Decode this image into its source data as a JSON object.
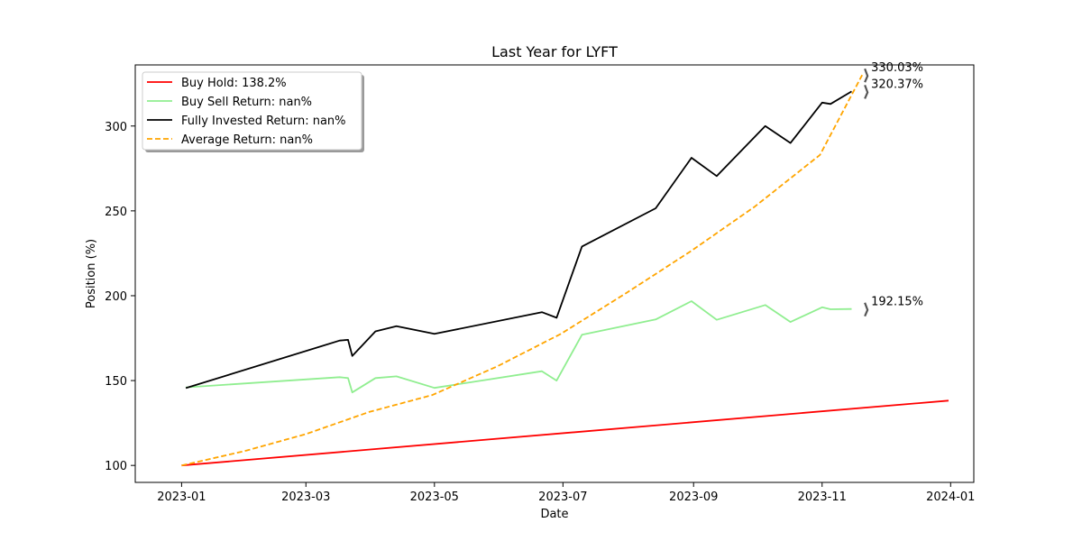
{
  "chart_data": {
    "type": "line",
    "title": "Last Year for LYFT",
    "xlabel": "Date",
    "ylabel": "Position (%)",
    "xlim": [
      "2022-12-10",
      "2024-01-12"
    ],
    "ylim": [
      90,
      336
    ],
    "x_ticks": [
      "2023-01-01",
      "2023-03-01",
      "2023-05-01",
      "2023-07-01",
      "2023-09-01",
      "2023-11-01",
      "2024-01-01"
    ],
    "x_tick_labels": [
      "2023-01",
      "2023-03",
      "2023-05",
      "2023-07",
      "2023-09",
      "2023-11",
      "2024-01"
    ],
    "y_ticks": [
      100,
      150,
      200,
      250,
      300
    ],
    "y_tick_labels": [
      "100",
      "150",
      "200",
      "250",
      "300"
    ],
    "legend_position": "top-left",
    "grid": false,
    "series": [
      {
        "name": "Buy Hold: 138.2%",
        "color": "#ff0000",
        "dash": "solid",
        "points": [
          [
            "2023-01-01",
            100
          ],
          [
            "2023-12-31",
            138.2
          ]
        ]
      },
      {
        "name": "Buy Sell Return: nan%",
        "color": "#90ee90",
        "dash": "solid",
        "points": [
          [
            "2023-01-03",
            146
          ],
          [
            "2023-03-17",
            152
          ],
          [
            "2023-03-21",
            151.5
          ],
          [
            "2023-03-23",
            143
          ],
          [
            "2023-04-03",
            151.5
          ],
          [
            "2023-04-13",
            152.5
          ],
          [
            "2023-05-01",
            145.7
          ],
          [
            "2023-06-21",
            155.5
          ],
          [
            "2023-06-28",
            150
          ],
          [
            "2023-07-10",
            177
          ],
          [
            "2023-08-14",
            186
          ],
          [
            "2023-08-31",
            196.8
          ],
          [
            "2023-09-12",
            185.8
          ],
          [
            "2023-10-05",
            194.5
          ],
          [
            "2023-10-17",
            184.5
          ],
          [
            "2023-11-01",
            193.2
          ],
          [
            "2023-11-05",
            192
          ],
          [
            "2023-11-15",
            192.15
          ]
        ]
      },
      {
        "name": "Fully Invested Return: nan%",
        "color": "#000000",
        "dash": "solid",
        "points": [
          [
            "2023-01-03",
            145.6
          ],
          [
            "2023-03-17",
            173.6
          ],
          [
            "2023-03-21",
            174
          ],
          [
            "2023-03-23",
            164.5
          ],
          [
            "2023-04-03",
            179
          ],
          [
            "2023-04-13",
            182
          ],
          [
            "2023-05-01",
            177.5
          ],
          [
            "2023-06-21",
            190.3
          ],
          [
            "2023-06-28",
            187
          ],
          [
            "2023-07-10",
            229
          ],
          [
            "2023-08-14",
            251.5
          ],
          [
            "2023-08-31",
            281.3
          ],
          [
            "2023-09-12",
            270.5
          ],
          [
            "2023-10-05",
            300
          ],
          [
            "2023-10-17",
            290
          ],
          [
            "2023-11-01",
            313.8
          ],
          [
            "2023-11-05",
            313
          ],
          [
            "2023-11-15",
            320.37
          ]
        ]
      },
      {
        "name": "Average Return: nan%",
        "color": "#ffa500",
        "dash": "dashed",
        "points": [
          [
            "2023-01-01",
            100
          ],
          [
            "2023-01-31",
            108.5
          ],
          [
            "2023-03-01",
            118.5
          ],
          [
            "2023-03-31",
            131.5
          ],
          [
            "2023-04-30",
            141.5
          ],
          [
            "2023-05-31",
            158.5
          ],
          [
            "2023-06-30",
            177.5
          ],
          [
            "2023-07-31",
            201.5
          ],
          [
            "2023-08-31",
            226.5
          ],
          [
            "2023-09-30",
            252.5
          ],
          [
            "2023-10-31",
            283
          ],
          [
            "2023-11-20",
            330.03
          ]
        ]
      }
    ],
    "annotations": [
      {
        "text": "330.03%",
        "x": "2023-11-20",
        "y": 330.03
      },
      {
        "text": "320.37%",
        "x": "2023-11-20",
        "y": 320.37
      },
      {
        "text": "192.15%",
        "x": "2023-11-20",
        "y": 192.15
      }
    ]
  }
}
